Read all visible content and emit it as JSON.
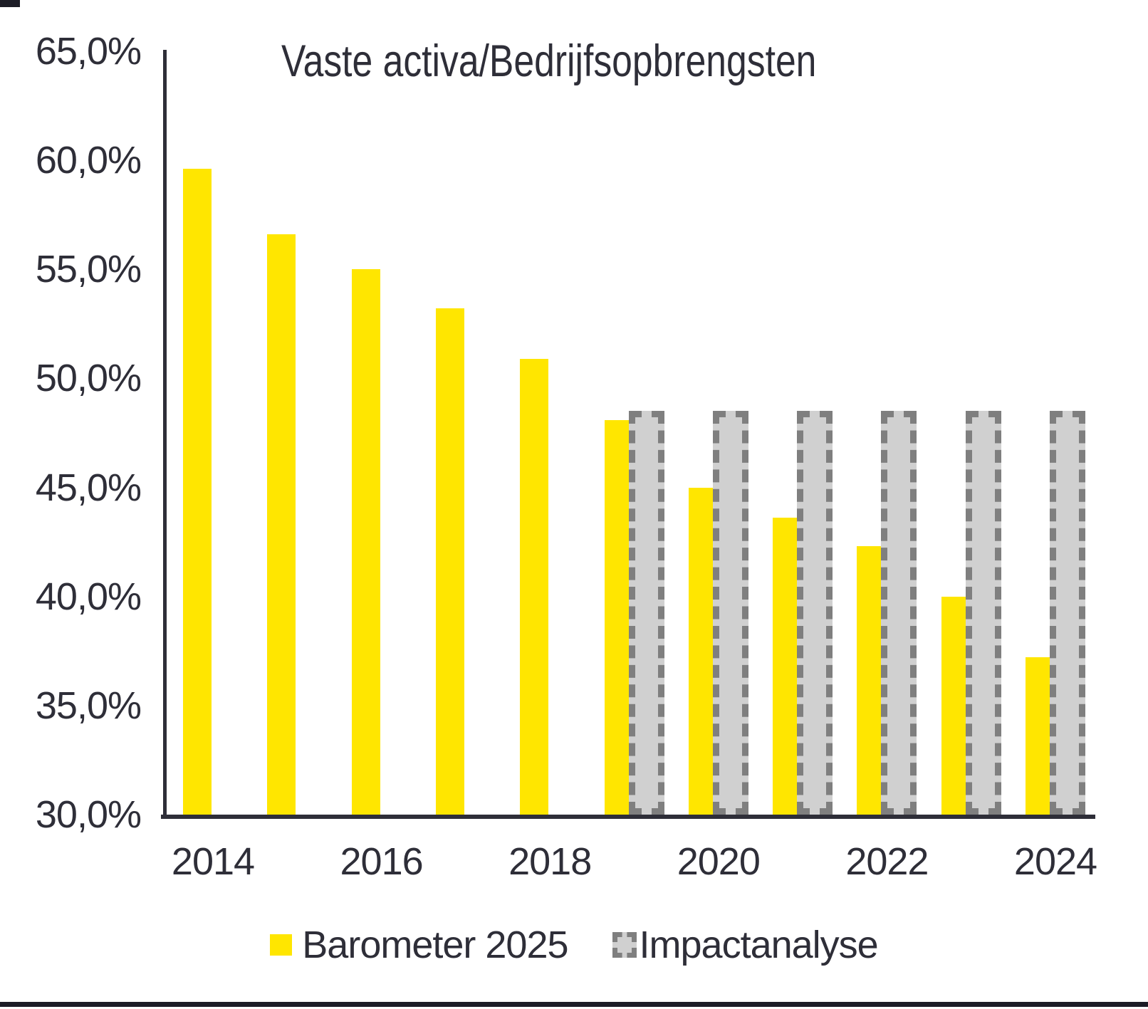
{
  "chart_data": {
    "type": "bar",
    "title": "Vaste activa/Bedrijfsopbrengsten",
    "categories": [
      "2014",
      "2015",
      "2016",
      "2017",
      "2018",
      "2019",
      "2020",
      "2021",
      "2022",
      "2023",
      "2024"
    ],
    "series": [
      {
        "name": "Barometer 2025",
        "color": "#FFE600",
        "values": [
          59.6,
          56.6,
          55.0,
          53.2,
          50.9,
          48.1,
          45.0,
          43.6,
          42.3,
          40.0,
          37.2
        ]
      },
      {
        "name": "Impactanalyse",
        "fill": "#D0D0D0",
        "border": "#7F7F7F",
        "values": [
          null,
          null,
          null,
          null,
          null,
          48.5,
          48.5,
          48.5,
          48.5,
          48.5,
          48.5
        ]
      }
    ],
    "y_axis": {
      "min": 30,
      "max": 65,
      "step": 5,
      "tick_labels": [
        "65,0%",
        "60,0%",
        "55,0%",
        "50,0%",
        "45,0%",
        "40,0%",
        "35,0%",
        "30,0%"
      ],
      "format": "percent-comma"
    },
    "x_axis": {
      "tick_labels": [
        "2014",
        "2016",
        "2018",
        "2020",
        "2022",
        "2024"
      ]
    },
    "grid": false,
    "legend_position": "bottom",
    "colors": {
      "text": "#2E2E38",
      "axis": "#2E2E38",
      "barometer": "#FFE600",
      "impact_fill": "#D0D0D0",
      "impact_border": "#7F7F7F",
      "frame_rule": "#1c1c26"
    }
  }
}
